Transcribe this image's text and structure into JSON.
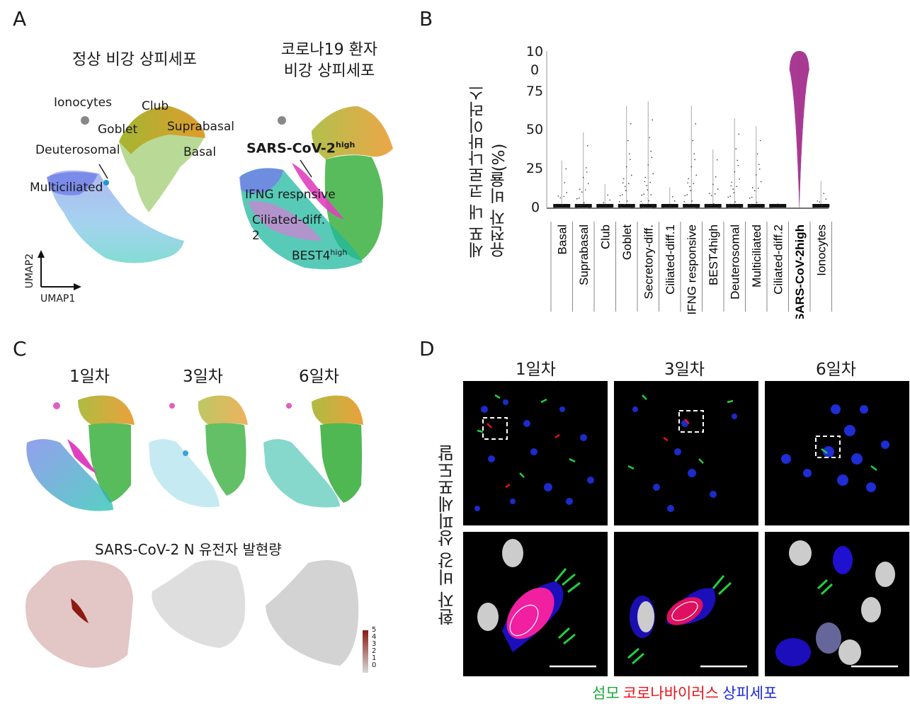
{
  "panels": {
    "a": {
      "letter": "A",
      "title_normal": "정상 비강 상피세포",
      "title_covid_line1": "코로나19 환자",
      "title_covid_line2": "비강 상피세포",
      "labels": {
        "ionocytes": "Ionocytes",
        "club": "Club",
        "goblet": "Goblet",
        "suprabasal": "Suprabasal",
        "deuterosomal": "Deuterosomal",
        "basal": "Basal",
        "multiciliated": "Multiciliated",
        "sars_base": "SARS-CoV-2",
        "sars_sup": "high",
        "ifng": "IFNG respnsive",
        "ciliated_line1": "Ciliated-diff.",
        "ciliated_line2": "2",
        "best4_base": "BEST4",
        "best4_sup": "high"
      },
      "axes": {
        "umap1": "UMAP1",
        "umap2": "UMAP2"
      },
      "colors": {
        "basal": "#e8901a",
        "suprabasal": "#c8a020",
        "club": "#a0b020",
        "goblet": "#60b030",
        "secretory": "#3cb040",
        "ciliated1": "#20b8a0",
        "ciliated2": "#30b8d8",
        "multiciliated": "#6888e8",
        "deuterosomal": "#1a9ad8",
        "sars": "#e040c0",
        "ifng": "#ee70d8",
        "ionocytes": "#888888"
      }
    },
    "b": {
      "letter": "B",
      "ylabel_line1": "세포 내 코로나바이러스",
      "ylabel_line2": "유전자 비율(%)"
    },
    "c": {
      "letter": "C",
      "days": [
        "1일차",
        "3일차",
        "6일차"
      ],
      "expr_title": "SARS-CoV-2 N 유전자 발현량",
      "colorbar_ticks": [
        "5",
        "4",
        "3",
        "2",
        "1",
        "0"
      ],
      "colorbar_colors": {
        "high": "#8b1a10",
        "low": "#d8d8d8"
      }
    },
    "d": {
      "letter": "D",
      "days": [
        "1일차",
        "3일차",
        "6일차"
      ],
      "side_label": "환자 비강 상피세포도말",
      "legend": {
        "cilia": "섬모",
        "virus": "코로나바이러스",
        "epithelium": "상피세포",
        "cilia_color": "#1aa83a",
        "virus_color": "#e8141a",
        "epithelium_color": "#1a2ad8"
      }
    }
  },
  "chart_data": {
    "type": "violin",
    "categories": [
      "Basal",
      "Suprabasal",
      "Club",
      "Goblet",
      "Secretory-diff.",
      "Ciliated-diff.1",
      "IFNG responsive",
      "BEST4high",
      "Deuterosomal",
      "Multiciliated",
      "Ciliated-diff.2",
      "SARS-CoV-2high",
      "Ionocytes"
    ],
    "max_values": [
      30,
      48,
      15,
      65,
      68,
      13,
      65,
      37,
      57,
      52,
      3,
      100,
      17
    ],
    "median_values": [
      0,
      0,
      0,
      0,
      0,
      0,
      0,
      1,
      0,
      0,
      0,
      88,
      0
    ],
    "highlight_category": "SARS-CoV-2high",
    "highlight_color": "#e83ec8",
    "yticks": [
      "10\n0",
      "75",
      "50",
      "25",
      "0"
    ],
    "ylim": [
      0,
      100
    ],
    "ylabel": "세포 내 코로나바이러스 유전자 비율(%)"
  }
}
